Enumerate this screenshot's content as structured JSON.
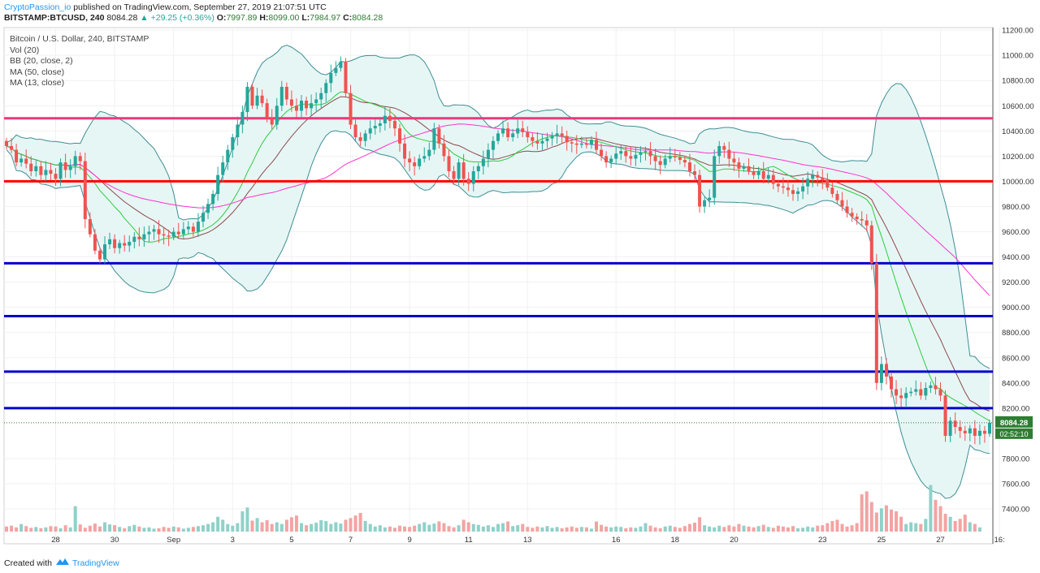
{
  "header": {
    "line1_author": "CryptoPassion_io",
    "line1_rest": "published on TradingView.com, September 27, 2019 21:07:51 UTC",
    "symbol": "BITSTAMP:BTCUSD, 240",
    "price": "8084.28",
    "change": "▲ +29.25 (+0.36%)",
    "o_label": "O:",
    "o_val": "7997.89",
    "h_label": "H:",
    "h_val": "8099.00",
    "l_label": "L:",
    "l_val": "7984.97",
    "c_label": "C:",
    "c_val": "8084.28"
  },
  "legend": {
    "title": "Bitcoin / U.S. Dollar, 240, BITSTAMP",
    "items": [
      "Vol (20)",
      "BB (20, close, 2)",
      "MA (50, close)",
      "MA (13, close)"
    ]
  },
  "footer": {
    "created_with": "Created with",
    "brand": "TradingView"
  },
  "colors": {
    "up": "#26a69a",
    "down": "#ef5350",
    "vol_up": "#8fd1c9",
    "vol_down": "#f4a3a3",
    "bb_line": "#3e8e95",
    "bb_fill": "#e6f6f5",
    "ma50": "#ff33cc",
    "ma13": "#ff66aa",
    "ma20": "#8d4a4a",
    "sr_red": "#ff0000",
    "sr_pink": "#f0357d",
    "sr_blue": "#0000cc",
    "price_badge": "#2e7d32"
  },
  "chart_data": {
    "type": "candlestick",
    "y_axis_ticks": [
      "11200.00",
      "11000.00",
      "10800.00",
      "10600.00",
      "10400.00",
      "10200.00",
      "10000.00",
      "9800.00",
      "9600.00",
      "9400.00",
      "9200.00",
      "9000.00",
      "8800.00",
      "8600.00",
      "8400.00",
      "8200.00",
      "7800.00",
      "7600.00",
      "7400.00"
    ],
    "ylim": [
      7220,
      11220
    ],
    "x_tick_labels": [
      "28",
      "30",
      "Sep",
      "3",
      "5",
      "7",
      "9",
      "11",
      "13",
      "16",
      "18",
      "20",
      "23",
      "25",
      "27",
      "16:"
    ],
    "x_tick_index": [
      10,
      22,
      34,
      46,
      58,
      70,
      82,
      94,
      106,
      124,
      136,
      148,
      166,
      178,
      190,
      202
    ],
    "horizontal_levels": [
      {
        "price": 10500,
        "color_key": "sr_pink"
      },
      {
        "price": 10000,
        "color_key": "sr_red"
      },
      {
        "price": 9350,
        "color_key": "sr_blue"
      },
      {
        "price": 8930,
        "color_key": "sr_blue"
      },
      {
        "price": 8490,
        "color_key": "sr_blue"
      },
      {
        "price": 8200,
        "color_key": "sr_blue"
      }
    ],
    "last_price": "8084.28",
    "countdown": "02:52:10",
    "closes": [
      10280,
      10250,
      10150,
      10180,
      10140,
      10080,
      10120,
      10050,
      10090,
      10060,
      10020,
      10150,
      10090,
      10120,
      10200,
      10160,
      9700,
      9580,
      9450,
      9380,
      9500,
      9540,
      9470,
      9510,
      9490,
      9520,
      9560,
      9540,
      9580,
      9600,
      9620,
      9580,
      9570,
      9560,
      9600,
      9580,
      9620,
      9640,
      9600,
      9680,
      9750,
      9820,
      9900,
      10050,
      10150,
      10250,
      10350,
      10450,
      10550,
      10750,
      10600,
      10680,
      10620,
      10500,
      10450,
      10600,
      10750,
      10650,
      10600,
      10560,
      10640,
      10580,
      10620,
      10650,
      10700,
      10780,
      10860,
      10900,
      10950,
      10700,
      10450,
      10350,
      10320,
      10380,
      10420,
      10440,
      10460,
      10520,
      10480,
      10420,
      10300,
      10180,
      10150,
      10120,
      10180,
      10200,
      10250,
      10420,
      10300,
      10200,
      10080,
      10020,
      10150,
      10020,
      9980,
      10080,
      10120,
      10180,
      10250,
      10320,
      10380,
      10420,
      10350,
      10380,
      10420,
      10390,
      10350,
      10320,
      10300,
      10320,
      10340,
      10360,
      10380,
      10360,
      10310,
      10300,
      10290,
      10300,
      10290,
      10330,
      10250,
      10200,
      10150,
      10180,
      10220,
      10240,
      10200,
      10180,
      10210,
      10230,
      10240,
      10200,
      10160,
      10130,
      10180,
      10200,
      10190,
      10170,
      10150,
      10080,
      10050,
      9800,
      9850,
      9870,
      10200,
      10280,
      10250,
      10180,
      10150,
      10100,
      10120,
      10080,
      10050,
      10080,
      10020,
      10050,
      9980,
      9960,
      9950,
      9930,
      9900,
      9920,
      9960,
      10020,
      10050,
      10030,
      10010,
      9950,
      9900,
      9850,
      9800,
      9750,
      9720,
      9700,
      9690,
      9650,
      9350,
      8400,
      8550,
      8450,
      8350,
      8300,
      8280,
      8320,
      8330,
      8350,
      8300,
      8360,
      8380,
      8350,
      8300,
      7980,
      8100,
      8050,
      8020,
      8000,
      8040,
      7980,
      8020,
      7997,
      8084
    ],
    "volumes": [
      12,
      14,
      10,
      18,
      13,
      9,
      11,
      8,
      10,
      13,
      12,
      8,
      15,
      10,
      60,
      17,
      9,
      14,
      19,
      12,
      22,
      17,
      15,
      11,
      8,
      13,
      16,
      12,
      9,
      10,
      7,
      8,
      11,
      9,
      12,
      10,
      7,
      9,
      11,
      13,
      15,
      18,
      22,
      35,
      28,
      18,
      14,
      20,
      48,
      57,
      26,
      32,
      22,
      27,
      18,
      22,
      18,
      28,
      34,
      38,
      20,
      15,
      18,
      21,
      27,
      25,
      18,
      22,
      19,
      28,
      32,
      38,
      44,
      25,
      18,
      12,
      15,
      10,
      12,
      9,
      14,
      12,
      11,
      14,
      18,
      22,
      16,
      19,
      24,
      20,
      13,
      10,
      15,
      28,
      22,
      18,
      16,
      12,
      15,
      11,
      18,
      20,
      24,
      13,
      15,
      18,
      11,
      9,
      12,
      10,
      13,
      9,
      11,
      8,
      10,
      12,
      9,
      11,
      10,
      7,
      24,
      16,
      12,
      10,
      12,
      11,
      8,
      10,
      9,
      12,
      20,
      14,
      10,
      8,
      12,
      14,
      11,
      9,
      13,
      18,
      21,
      34,
      15,
      12,
      10,
      14,
      11,
      15,
      12,
      18,
      14,
      12,
      10,
      13,
      16,
      11,
      9,
      14,
      12,
      10,
      13,
      8,
      9,
      12,
      10,
      14,
      15,
      20,
      25,
      28,
      18,
      12,
      15,
      20,
      88,
      95,
      70,
      45,
      55,
      62,
      52,
      48,
      35,
      18,
      22,
      20,
      18,
      30,
      110,
      75,
      60,
      42,
      35,
      25,
      30,
      40,
      22,
      18,
      10
    ]
  }
}
